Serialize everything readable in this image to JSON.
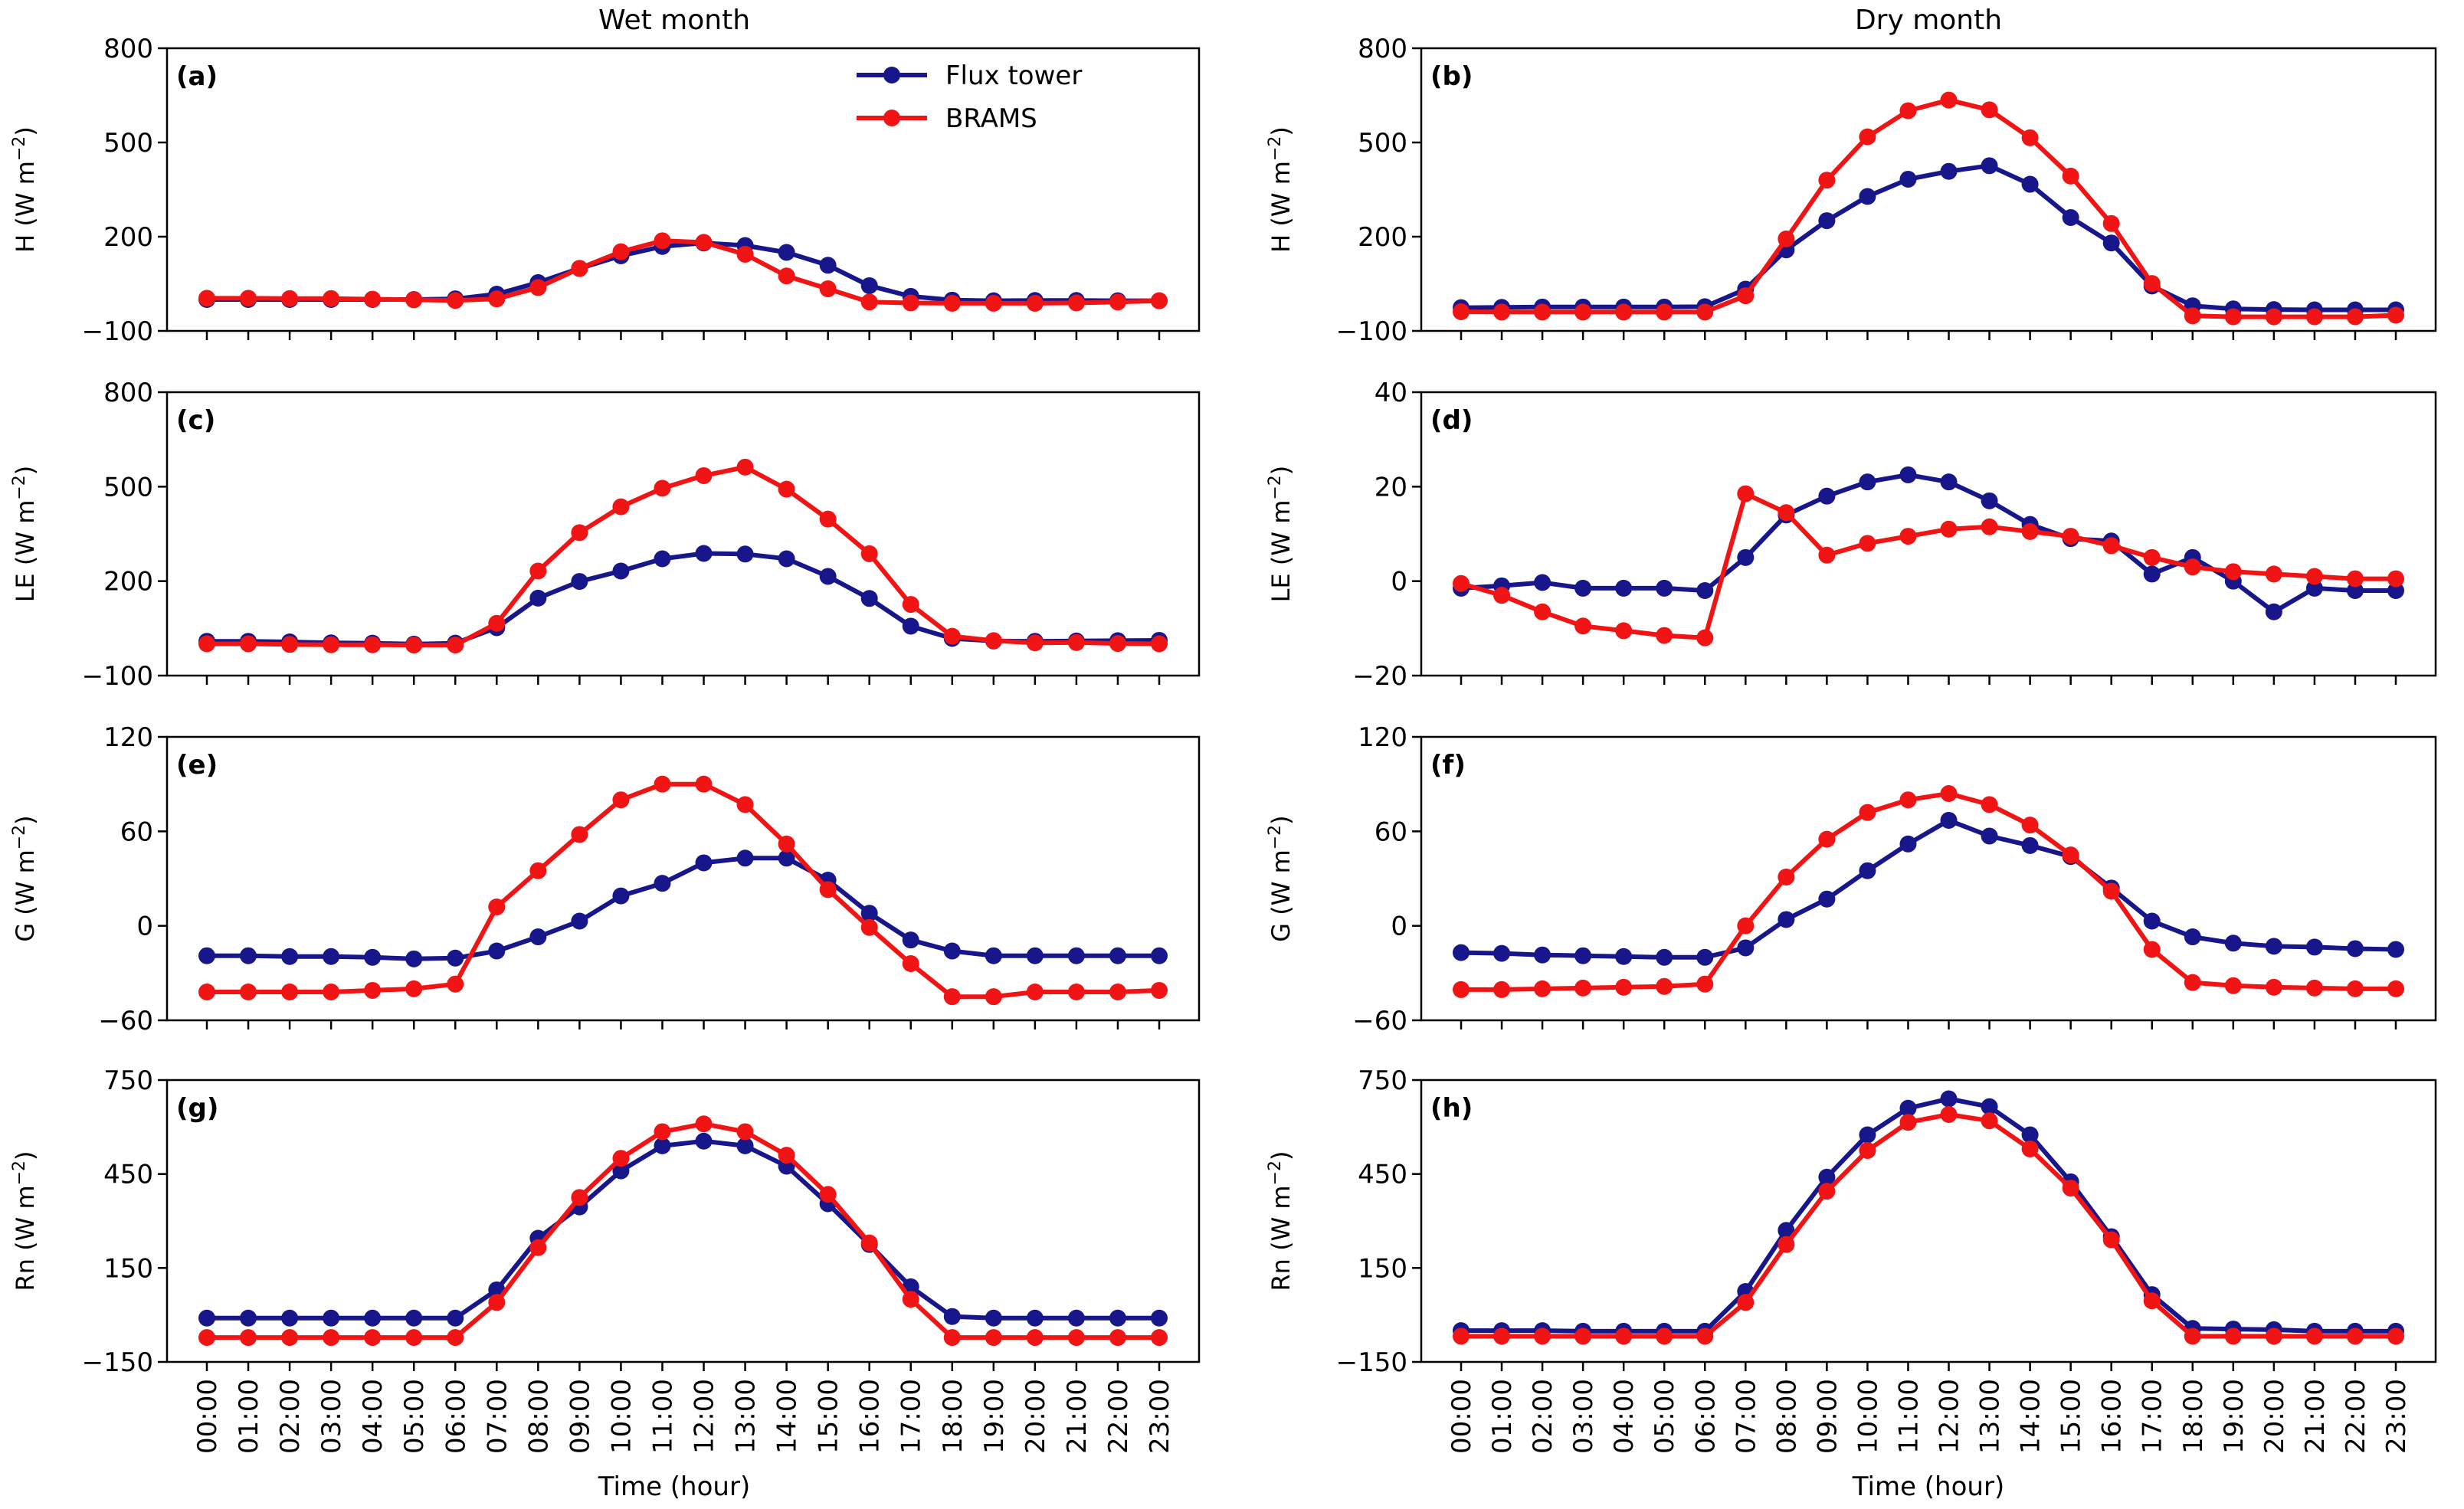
{
  "figure": {
    "columns": [
      "Wet month",
      "Dry month"
    ],
    "xlabel": "Time (hour)",
    "x_ticks": [
      "00:00",
      "01:00",
      "02:00",
      "03:00",
      "04:00",
      "05:00",
      "06:00",
      "07:00",
      "08:00",
      "09:00",
      "10:00",
      "11:00",
      "12:00",
      "13:00",
      "14:00",
      "15:00",
      "16:00",
      "17:00",
      "18:00",
      "19:00",
      "20:00",
      "21:00",
      "22:00",
      "23:00"
    ],
    "legend": {
      "placement": "top-right of panel (a)",
      "entries": [
        "Flux tower",
        "BRAMS"
      ]
    },
    "colors": {
      "flux_tower": "#17168a",
      "brams": "#f01414"
    }
  },
  "chart_data": [
    {
      "type": "line",
      "panel": "(a)",
      "column": "Wet month",
      "title": "",
      "xlabel": "",
      "ylabel": "H (W m−2)",
      "ylim": [
        -100,
        800
      ],
      "yticks": [
        -100,
        200,
        500,
        800
      ],
      "yticklabels": [
        "−100",
        "200",
        "500",
        "800"
      ],
      "series": [
        {
          "name": "Flux tower",
          "values": [
            0,
            0,
            0,
            0,
            0,
            0,
            2,
            17,
            54,
            99,
            139,
            169,
            180,
            172,
            150,
            109,
            44,
            10,
            -2,
            -4,
            -3,
            -3,
            -4,
            -4
          ]
        },
        {
          "name": "BRAMS",
          "values": [
            4,
            4,
            3,
            3,
            1,
            -1,
            -3,
            2,
            38,
            99,
            152,
            187,
            182,
            144,
            75,
            34,
            -8,
            -11,
            -12,
            -12,
            -12,
            -11,
            -8,
            -4
          ]
        }
      ]
    },
    {
      "type": "line",
      "panel": "(b)",
      "column": "Dry month",
      "title": "",
      "xlabel": "",
      "ylabel": "H (W m−2)",
      "ylim": [
        -100,
        800
      ],
      "yticks": [
        -100,
        200,
        500,
        800
      ],
      "yticklabels": [
        "−100",
        "200",
        "500",
        "800"
      ],
      "series": [
        {
          "name": "Flux tower",
          "values": [
            -26,
            -25,
            -24,
            -24,
            -24,
            -24,
            -23,
            33,
            158,
            251,
            328,
            383,
            408,
            426,
            367,
            261,
            180,
            43,
            -20,
            -30,
            -32,
            -33,
            -33,
            -33
          ]
        },
        {
          "name": "BRAMS",
          "values": [
            -39,
            -40,
            -40,
            -40,
            -40,
            -40,
            -40,
            12,
            193,
            380,
            518,
            601,
            635,
            604,
            515,
            393,
            242,
            51,
            -52,
            -55,
            -55,
            -55,
            -55,
            -50
          ]
        }
      ]
    },
    {
      "type": "line",
      "panel": "(c)",
      "column": "Wet month",
      "title": "",
      "xlabel": "",
      "ylabel": "LE (W m−2)",
      "ylim": [
        -100,
        800
      ],
      "yticks": [
        -100,
        200,
        500,
        800
      ],
      "yticklabels": [
        "−100",
        "200",
        "500",
        "800"
      ],
      "series": [
        {
          "name": "Flux tower",
          "values": [
            9,
            9,
            7,
            4,
            3,
            0,
            3,
            52,
            146,
            199,
            232,
            271,
            288,
            286,
            271,
            215,
            145,
            57,
            18,
            10,
            9,
            10,
            11,
            12
          ]
        },
        {
          "name": "BRAMS",
          "values": [
            1,
            1,
            -1,
            -2,
            -2,
            -3,
            -3,
            66,
            232,
            354,
            436,
            495,
            535,
            562,
            492,
            397,
            287,
            126,
            25,
            11,
            4,
            5,
            2,
            1
          ]
        }
      ]
    },
    {
      "type": "line",
      "panel": "(d)",
      "column": "Dry month",
      "title": "",
      "xlabel": "",
      "ylabel": "LE (W m−2)",
      "ylim": [
        -20,
        40
      ],
      "yticks": [
        -20,
        0,
        20,
        40
      ],
      "yticklabels": [
        "−20",
        "0",
        "20",
        "40"
      ],
      "series": [
        {
          "name": "Flux tower",
          "values": [
            -1.5,
            -1,
            -0.3,
            -1.5,
            -1.5,
            -1.5,
            -2,
            5,
            14,
            18,
            21,
            22.5,
            21,
            17,
            12,
            9,
            8.5,
            1.5,
            5,
            0,
            -6.5,
            -1.5,
            -2,
            -2
          ]
        },
        {
          "name": "BRAMS",
          "values": [
            -0.5,
            -3,
            -6.5,
            -9.5,
            -10.5,
            -11.5,
            -12,
            18.5,
            14.5,
            5.5,
            8,
            9.5,
            11,
            11.5,
            10.5,
            9.5,
            7.5,
            5,
            3,
            2,
            1.5,
            1,
            0.5,
            0.5
          ]
        }
      ]
    },
    {
      "type": "line",
      "panel": "(e)",
      "column": "Wet month",
      "title": "",
      "xlabel": "",
      "ylabel": "G (W m−2)",
      "ylim": [
        -60,
        120
      ],
      "yticks": [
        -60,
        0,
        60,
        120
      ],
      "yticklabels": [
        "−60",
        "0",
        "60",
        "120"
      ],
      "series": [
        {
          "name": "Flux tower",
          "values": [
            -19,
            -19,
            -19.5,
            -19.5,
            -20,
            -21,
            -20.5,
            -16,
            -7,
            3,
            19,
            27,
            40,
            43,
            43,
            29,
            8,
            -9,
            -16,
            -19,
            -19,
            -19,
            -19,
            -19
          ]
        },
        {
          "name": "BRAMS",
          "values": [
            -42,
            -42,
            -42,
            -42,
            -41,
            -40,
            -37,
            12,
            35,
            58,
            80,
            90,
            90,
            77,
            52,
            23,
            -1,
            -24,
            -45,
            -45,
            -42,
            -42,
            -42,
            -41
          ]
        }
      ]
    },
    {
      "type": "line",
      "panel": "(f)",
      "column": "Dry month",
      "title": "",
      "xlabel": "",
      "ylabel": "G (W m−2)",
      "ylim": [
        -60,
        120
      ],
      "yticks": [
        -60,
        0,
        60,
        120
      ],
      "yticklabels": [
        "−60",
        "0",
        "60",
        "120"
      ],
      "series": [
        {
          "name": "Flux tower",
          "values": [
            -17,
            -17.5,
            -18.5,
            -19,
            -19.5,
            -20,
            -20,
            -14,
            4,
            17,
            35,
            52,
            67,
            57,
            51,
            44,
            24,
            3,
            -7,
            -11,
            -13,
            -13.5,
            -14.5,
            -15
          ]
        },
        {
          "name": "BRAMS",
          "values": [
            -40.5,
            -40.5,
            -40,
            -39.5,
            -39,
            -38.5,
            -37,
            0,
            31,
            55,
            72,
            80,
            84,
            77,
            64,
            45,
            22,
            -15,
            -36,
            -38,
            -39,
            -39.5,
            -40,
            -40
          ]
        }
      ]
    },
    {
      "type": "line",
      "panel": "(g)",
      "column": "Wet month",
      "title": "",
      "xlabel": "Time (hour)",
      "ylabel": "Rn (W m−2)",
      "ylim": [
        -150,
        750
      ],
      "yticks": [
        -150,
        150,
        450,
        750
      ],
      "yticklabels": [
        "−150",
        "150",
        "450",
        "750"
      ],
      "series": [
        {
          "name": "Flux tower",
          "values": [
            -10,
            -10,
            -10,
            -10,
            -10,
            -10,
            -10,
            80,
            245,
            345,
            460,
            540,
            555,
            540,
            475,
            355,
            225,
            90,
            -5,
            -10,
            -10,
            -10,
            -10,
            -10
          ]
        },
        {
          "name": "BRAMS",
          "values": [
            -72,
            -72,
            -72,
            -72,
            -72,
            -72,
            -72,
            40,
            215,
            375,
            500,
            585,
            610,
            585,
            510,
            385,
            230,
            50,
            -72,
            -72,
            -72,
            -72,
            -72,
            -72
          ]
        }
      ]
    },
    {
      "type": "line",
      "panel": "(h)",
      "column": "Dry month",
      "title": "",
      "xlabel": "Time (hour)",
      "ylabel": "Rn (W m−2)",
      "ylim": [
        -150,
        750
      ],
      "yticks": [
        -150,
        150,
        450,
        750
      ],
      "yticklabels": [
        "−150",
        "150",
        "450",
        "750"
      ],
      "series": [
        {
          "name": "Flux tower",
          "values": [
            -50,
            -50,
            -50,
            -52,
            -52,
            -52,
            -52,
            75,
            270,
            440,
            575,
            660,
            690,
            665,
            575,
            425,
            250,
            65,
            -43,
            -45,
            -47,
            -52,
            -52,
            -52
          ]
        },
        {
          "name": "BRAMS",
          "values": [
            -68,
            -68,
            -68,
            -68,
            -68,
            -68,
            -68,
            40,
            225,
            395,
            525,
            615,
            640,
            620,
            530,
            405,
            240,
            45,
            -68,
            -68,
            -68,
            -68,
            -68,
            -68
          ]
        }
      ]
    }
  ]
}
